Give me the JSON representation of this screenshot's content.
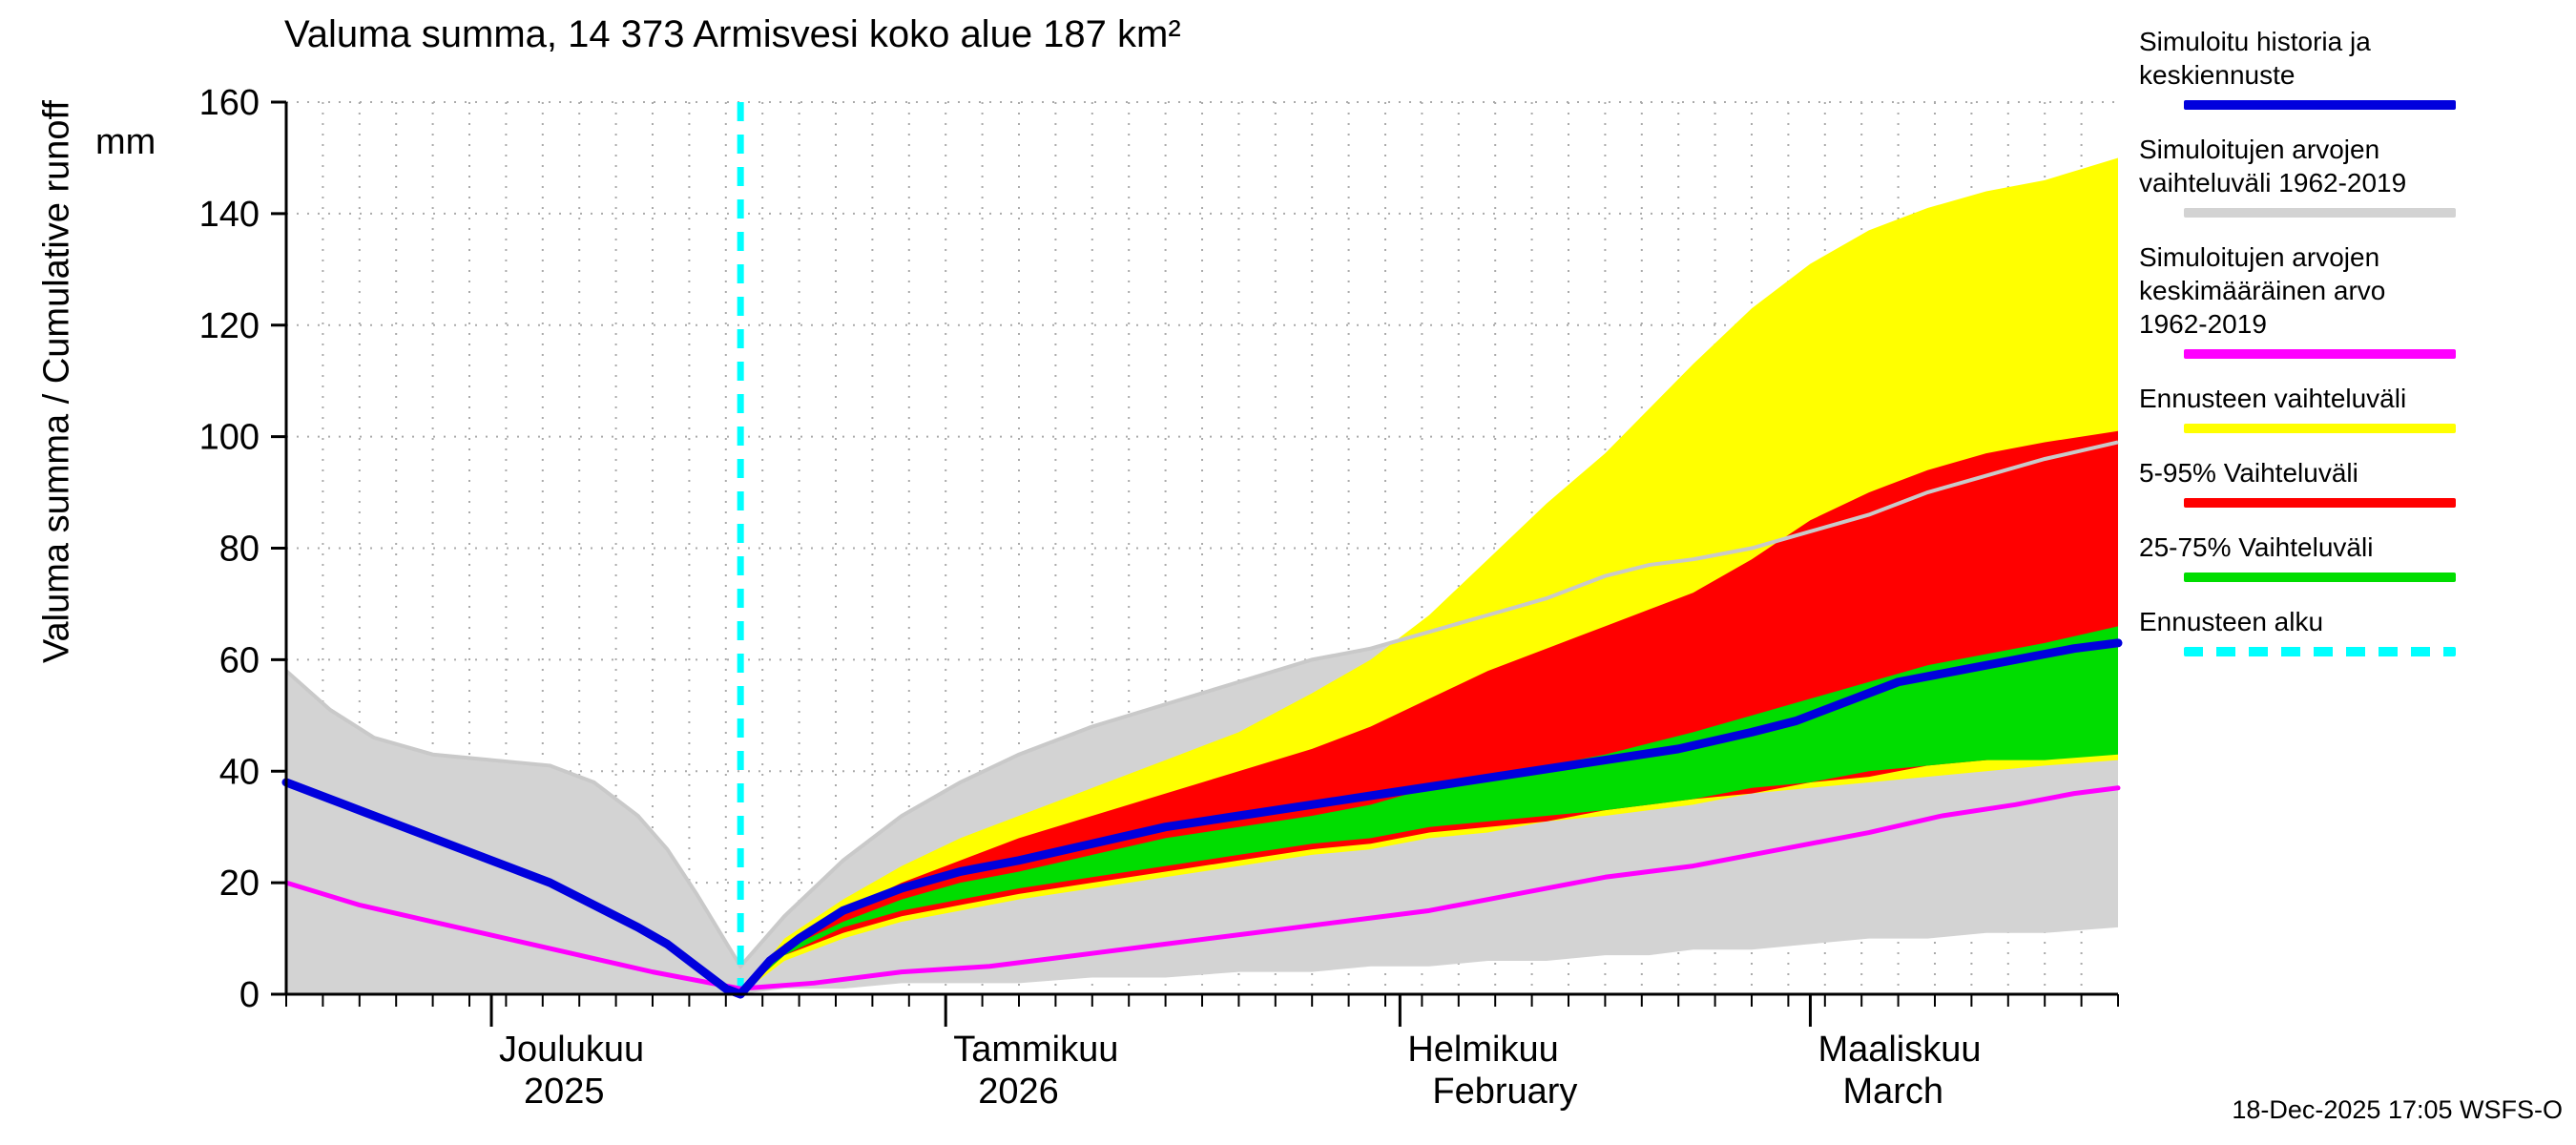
{
  "title": "Valuma summa, 14 373 Armisvesi koko alue 187 km²",
  "timestamp": "18-Dec-2025 17:05 WSFS-O",
  "y_axis_label": "Valuma summa / Cumulative runoff",
  "y_axis_unit": "mm",
  "legend": [
    {
      "name": "simulated-history-and-mean-forecast",
      "label": "Simuloitu historia ja keskiennuste",
      "color": "#0000dd",
      "style": "solid"
    },
    {
      "name": "simulated-range-1962-2019",
      "label": "Simuloitujen arvojen vaihteluväli 1962-2019",
      "color": "#d3d3d3",
      "style": "solid"
    },
    {
      "name": "simulated-mean-1962-2019",
      "label": "Simuloitujen arvojen keskimääräinen arvo 1962-2019",
      "color": "#ff00ff",
      "style": "solid"
    },
    {
      "name": "forecast-range",
      "label": "Ennusteen vaihteluväli",
      "color": "#ffff00",
      "style": "solid"
    },
    {
      "name": "range-5-95",
      "label": "5-95% Vaihteluväli",
      "color": "#ff0000",
      "style": "solid"
    },
    {
      "name": "range-25-75",
      "label": "25-75% Vaihteluväli",
      "color": "#00dd00",
      "style": "solid"
    },
    {
      "name": "forecast-start",
      "label": "Ennusteen alku",
      "color": "#00ffff",
      "style": "dashed"
    }
  ],
  "chart_data": {
    "type": "area",
    "title": "Valuma summa, 14 373 Armisvesi koko alue 187 km²",
    "ylabel": "Valuma summa / Cumulative runoff (mm)",
    "ylim": [
      0,
      160
    ],
    "yticks": [
      0,
      20,
      40,
      60,
      80,
      100,
      120,
      140,
      160
    ],
    "grid": true,
    "x_axis": {
      "unit": "days",
      "range": [
        0,
        125
      ],
      "start_date": "17-Nov-2025",
      "end_date": "22-Mar-2026",
      "forecast_start_day": 31,
      "forecast_start_date": "18-Dec-2025",
      "gridline_step_days": 2.5,
      "month_starts": [
        {
          "day": 14,
          "label": [
            "Joulukuu",
            "2025"
          ]
        },
        {
          "day": 45,
          "label": [
            "Tammikuu",
            "2026"
          ]
        },
        {
          "day": 76,
          "label": [
            "Helmikuu",
            "February"
          ]
        },
        {
          "day": 104,
          "label": [
            "Maaliskuu",
            "March"
          ]
        }
      ]
    },
    "history_edge_color": "#c9c9c9",
    "bands": [
      {
        "name": "simulated-range-1962-2019",
        "color": "#d3d3d3",
        "days": [
          0,
          3,
          6,
          10,
          14,
          18,
          21,
          24,
          26,
          28,
          31,
          34,
          38,
          42,
          46,
          50,
          55,
          60,
          65,
          70,
          74,
          78,
          82,
          86,
          90,
          93,
          96,
          100,
          104,
          108,
          112,
          116,
          120,
          125
        ],
        "upper": [
          58,
          51,
          46,
          43,
          42,
          41,
          38,
          32,
          26,
          18,
          5,
          14,
          24,
          32,
          38,
          43,
          48,
          52,
          56,
          60,
          62,
          65,
          68,
          71,
          75,
          77,
          78,
          80,
          83,
          86,
          90,
          93,
          96,
          99
        ],
        "lower": [
          0,
          0,
          0,
          0,
          0,
          0,
          0,
          0,
          0,
          0,
          0,
          1,
          1,
          2,
          2,
          2,
          3,
          3,
          4,
          4,
          5,
          5,
          6,
          6,
          7,
          7,
          8,
          8,
          9,
          10,
          10,
          11,
          11,
          12
        ]
      },
      {
        "name": "forecast-range",
        "color": "#ffff00",
        "days": [
          31,
          34,
          38,
          42,
          46,
          50,
          55,
          60,
          65,
          70,
          74,
          78,
          82,
          86,
          90,
          93,
          96,
          100,
          104,
          108,
          112,
          116,
          120,
          125
        ],
        "upper": [
          0,
          10,
          17,
          23,
          28,
          32,
          37,
          42,
          47,
          54,
          60,
          68,
          78,
          88,
          97,
          105,
          113,
          123,
          131,
          137,
          141,
          144,
          146,
          150
        ],
        "lower": [
          0,
          6,
          10,
          13,
          15,
          17,
          19,
          21,
          23,
          25,
          26,
          28,
          29,
          31,
          32,
          33,
          34,
          36,
          37,
          38,
          39,
          40,
          41,
          42
        ]
      },
      {
        "name": "range-5-95",
        "color": "#ff0000",
        "days": [
          31,
          34,
          38,
          42,
          46,
          50,
          55,
          60,
          65,
          70,
          74,
          78,
          82,
          86,
          90,
          93,
          96,
          100,
          104,
          108,
          112,
          116,
          120,
          125
        ],
        "upper": [
          0,
          9,
          15,
          20,
          24,
          28,
          32,
          36,
          40,
          44,
          48,
          53,
          58,
          62,
          66,
          69,
          72,
          78,
          85,
          90,
          94,
          97,
          99,
          101
        ],
        "lower": [
          0,
          7,
          11,
          14,
          16,
          18,
          20,
          22,
          24,
          26,
          27,
          29,
          30,
          31,
          33,
          34,
          35,
          36,
          38,
          39,
          41,
          42,
          43,
          44
        ]
      },
      {
        "name": "range-25-75",
        "color": "#00dd00",
        "days": [
          31,
          34,
          38,
          42,
          46,
          50,
          55,
          60,
          65,
          70,
          74,
          78,
          82,
          86,
          90,
          93,
          96,
          100,
          104,
          108,
          112,
          116,
          120,
          125
        ],
        "upper": [
          0,
          8,
          13,
          17,
          20,
          22,
          25,
          28,
          30,
          32,
          34,
          37,
          39,
          41,
          43,
          45,
          47,
          50,
          53,
          56,
          59,
          61,
          63,
          66
        ],
        "lower": [
          0,
          7,
          12,
          15,
          17,
          19,
          21,
          23,
          25,
          27,
          28,
          30,
          31,
          32,
          33,
          34,
          35,
          37,
          38,
          40,
          41,
          42,
          42,
          43
        ]
      }
    ],
    "lines": [
      {
        "name": "simulated-mean-1962-2019",
        "color": "#ff00ff",
        "width": 5,
        "days": [
          0,
          5,
          10,
          15,
          20,
          25,
          31,
          36,
          42,
          48,
          54,
          60,
          66,
          72,
          78,
          84,
          90,
          96,
          102,
          108,
          113,
          118,
          122,
          125
        ],
        "values": [
          20,
          16,
          13,
          10,
          7,
          4,
          1,
          2,
          4,
          5,
          7,
          9,
          11,
          13,
          15,
          18,
          21,
          23,
          26,
          29,
          32,
          34,
          36,
          37
        ]
      },
      {
        "name": "simulated-history-and-mean-forecast",
        "color": "#0000dd",
        "width": 9,
        "days": [
          0,
          4,
          8,
          12,
          15,
          18,
          21,
          24,
          26,
          28,
          30,
          31,
          33,
          35,
          38,
          42,
          46,
          50,
          55,
          60,
          65,
          70,
          75,
          80,
          85,
          90,
          95,
          100,
          103,
          106,
          110,
          114,
          118,
          122,
          125
        ],
        "values": [
          38,
          34,
          30,
          26,
          23,
          20,
          16,
          12,
          9,
          5,
          1,
          0,
          6,
          10,
          15,
          19,
          22,
          24,
          27,
          30,
          32,
          34,
          36,
          38,
          40,
          42,
          44,
          47,
          49,
          52,
          56,
          58,
          60,
          62,
          63
        ]
      }
    ]
  }
}
